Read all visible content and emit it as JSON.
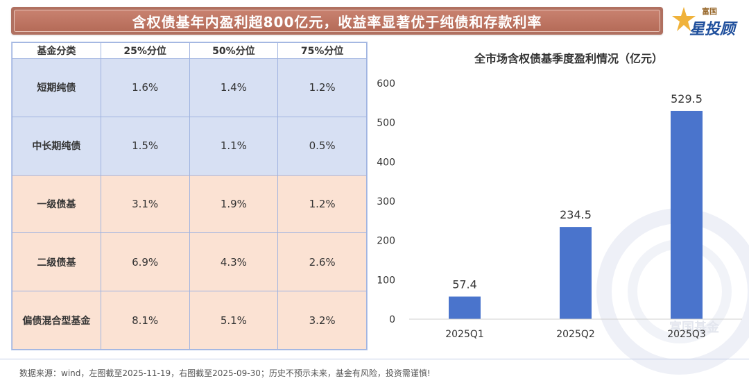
{
  "banner": {
    "title": "含权债基年内盈利超800亿元，收益率显著优于纯债和存款利率"
  },
  "logo": {
    "top": "富国",
    "main": "星投顾",
    "watermark": "富国基金"
  },
  "colors": {
    "bar": "#4a74cc",
    "blue_row": "#d7e0f3",
    "peach_row": "#fbe2d3",
    "banner": "#b56b58"
  },
  "table": {
    "headers": [
      "基金分类",
      "25%分位",
      "50%分位",
      "75%分位"
    ],
    "rows": [
      {
        "cat": "短期纯债",
        "p25": "1.6%",
        "p50": "1.4%",
        "p75": "1.2%"
      },
      {
        "cat": "中长期纯债",
        "p25": "1.5%",
        "p50": "1.1%",
        "p75": "0.5%"
      },
      {
        "cat": "一级债基",
        "p25": "3.1%",
        "p50": "1.9%",
        "p75": "1.2%"
      },
      {
        "cat": "二级债基",
        "p25": "6.9%",
        "p50": "4.3%",
        "p75": "2.6%"
      },
      {
        "cat": "偏债混合型基金",
        "p25": "8.1%",
        "p50": "5.1%",
        "p75": "3.2%"
      }
    ]
  },
  "chart_data": {
    "type": "bar",
    "title": "全市场含权债基季度盈利情况（亿元）",
    "categories": [
      "2025Q1",
      "2025Q2",
      "2025Q3"
    ],
    "values": [
      57.4,
      234.5,
      529.5
    ],
    "data_labels": [
      "57.4",
      "234.5",
      "529.5"
    ],
    "ylim": [
      0,
      600
    ],
    "yticks": [
      0,
      100,
      200,
      300,
      400,
      500,
      600
    ],
    "xlabel": "",
    "ylabel": "",
    "grid": false
  },
  "footer": {
    "text": "数据来源：wind，左图截至2025-11-19，右图截至2025-09-30；历史不预示未来，基金有风险，投资需谨慎!"
  }
}
